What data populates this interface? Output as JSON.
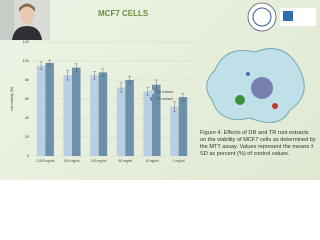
{
  "slide": {
    "title": "MCF7 CELLS",
    "caption": "Figure 4. Effects of DR and TR root extracts on the viability of MCF7 cells as determined by the MTT assay. Values represent the means ± SD as percent (%) of control values."
  },
  "chart_data": {
    "type": "bar",
    "y_label": "cell viability (%)",
    "categories": [
      "1,000 mg/ml",
      "500 mg/ml",
      "100 mg/ml",
      "50 mg/ml",
      "10 mg/ml",
      "1 mg/ml"
    ],
    "series": [
      {
        "name": "DR extract",
        "color": "#b9cfe2",
        "values": [
          95,
          85,
          85,
          72,
          68,
          52
        ],
        "errors": [
          4,
          5,
          4,
          5,
          4,
          5
        ]
      },
      {
        "name": "TR extract",
        "color": "#6e91ab",
        "values": [
          98,
          93,
          88,
          80,
          75,
          62
        ],
        "errors": [
          3,
          4,
          4,
          4,
          5,
          4
        ]
      }
    ],
    "ylim": [
      0,
      120
    ],
    "yticks": [
      0,
      20,
      40,
      60,
      80,
      100,
      120
    ],
    "grid": true
  }
}
